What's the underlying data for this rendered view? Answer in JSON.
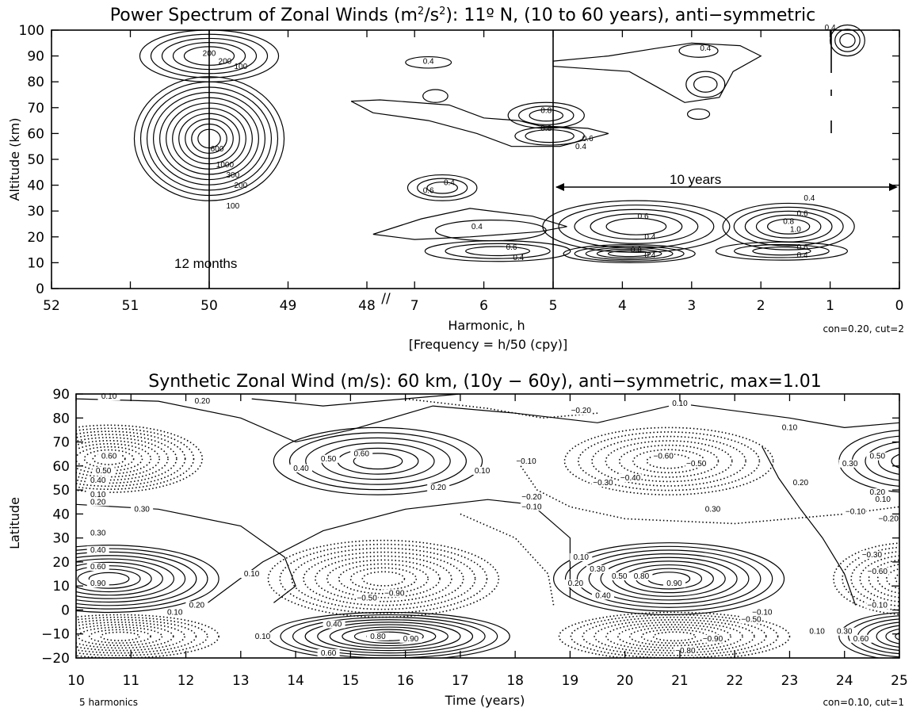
{
  "chart_data": [
    {
      "type": "contour",
      "title_main": "Power Spectrum of Zonal Winds (m",
      "title_sup1": "2",
      "title_mid": "/s",
      "title_sup2": "2",
      "title_end": "): 11º N, (10 to 60 years), anti−symmetric",
      "xlabel": "Harmonic, h",
      "xlabel2": "[Frequency = h/50 (cpy)]",
      "ylabel": "Altitude (km)",
      "ylim": [
        0,
        100
      ],
      "xticks_left": [
        "52",
        "51",
        "50",
        "49",
        "48"
      ],
      "xticks_right": [
        "7",
        "6",
        "5",
        "4",
        "3",
        "2",
        "1",
        "0"
      ],
      "yticks": [
        "0",
        "10",
        "20",
        "30",
        "40",
        "50",
        "60",
        "70",
        "80",
        "90",
        "100"
      ],
      "axis_break": "//",
      "annotations": [
        "12 months",
        "10 years"
      ],
      "note": "con=0.20, cut=2",
      "vertical_lines_at_harmonic": [
        50,
        5,
        1
      ],
      "contour_labels": [
        {
          "h": 50,
          "alt": 90,
          "text": "200"
        },
        {
          "h": 49.8,
          "alt": 87,
          "text": "200"
        },
        {
          "h": 49.6,
          "alt": 85,
          "text": "100"
        },
        {
          "h": 49.9,
          "alt": 53,
          "text": "600"
        },
        {
          "h": 49.8,
          "alt": 47,
          "text": "1000"
        },
        {
          "h": 49.7,
          "alt": 43,
          "text": "300"
        },
        {
          "h": 49.6,
          "alt": 39,
          "text": "200"
        },
        {
          "h": 49.7,
          "alt": 31,
          "text": "100"
        },
        {
          "h": 6.8,
          "alt": 87,
          "text": "0.4"
        },
        {
          "h": 5.1,
          "alt": 68,
          "text": "0.8"
        },
        {
          "h": 5.1,
          "alt": 61,
          "text": "0.8"
        },
        {
          "h": 4.5,
          "alt": 57,
          "text": "0.6"
        },
        {
          "h": 4.6,
          "alt": 54,
          "text": "0.4"
        },
        {
          "h": 6.5,
          "alt": 40,
          "text": "0.4"
        },
        {
          "h": 6.8,
          "alt": 37,
          "text": "0.6"
        },
        {
          "h": 6.1,
          "alt": 23,
          "text": "0.4"
        },
        {
          "h": 5.6,
          "alt": 15,
          "text": "0.6"
        },
        {
          "h": 5.5,
          "alt": 11,
          "text": "0.4"
        },
        {
          "h": 2.8,
          "alt": 92,
          "text": "0.4"
        },
        {
          "h": 1.0,
          "alt": 100,
          "text": "0.4"
        },
        {
          "h": 3.7,
          "alt": 27,
          "text": "0.6"
        },
        {
          "h": 3.6,
          "alt": 19,
          "text": "0.4"
        },
        {
          "h": 3.8,
          "alt": 14,
          "text": "0.8"
        },
        {
          "h": 3.6,
          "alt": 12,
          "text": "0.4"
        },
        {
          "h": 1.3,
          "alt": 34,
          "text": "0.4"
        },
        {
          "h": 1.4,
          "alt": 28,
          "text": "0.6"
        },
        {
          "h": 1.6,
          "alt": 25,
          "text": "0.8"
        },
        {
          "h": 1.5,
          "alt": 22,
          "text": "1.0"
        },
        {
          "h": 1.4,
          "alt": 15,
          "text": "0.6"
        },
        {
          "h": 1.4,
          "alt": 12,
          "text": "0.4"
        }
      ]
    },
    {
      "type": "contour",
      "title": "Synthetic Zonal Wind (m/s): 60 km, (10y − 60y), anti−symmetric, max=1.01",
      "xlabel": "Time (years)",
      "ylabel": "Latitude",
      "xlim": [
        10,
        25
      ],
      "ylim": [
        -20,
        90
      ],
      "xticks": [
        "10",
        "11",
        "12",
        "13",
        "14",
        "15",
        "16",
        "17",
        "18",
        "19",
        "20",
        "21",
        "22",
        "23",
        "24",
        "25"
      ],
      "yticks": [
        "−20",
        "−10",
        "0",
        "10",
        "20",
        "30",
        "40",
        "50",
        "60",
        "70",
        "80",
        "90"
      ],
      "note_left": "5 harmonics",
      "note_right": "con=0.10, cut=1",
      "line_style": "solid = positive, dotted = negative",
      "contour_labels": [
        {
          "t": 10.6,
          "lat": 88,
          "text": "0.10"
        },
        {
          "t": 12.3,
          "lat": 86,
          "text": "0.20"
        },
        {
          "t": 10.6,
          "lat": 63,
          "text": "0.60"
        },
        {
          "t": 10.5,
          "lat": 57,
          "text": "0.50"
        },
        {
          "t": 10.4,
          "lat": 53,
          "text": "0.40"
        },
        {
          "t": 10.4,
          "lat": 47,
          "text": "0.10"
        },
        {
          "t": 10.4,
          "lat": 44,
          "text": "0.20"
        },
        {
          "t": 11.2,
          "lat": 41,
          "text": "0.30"
        },
        {
          "t": 10.4,
          "lat": 31,
          "text": "0.30"
        },
        {
          "t": 10.4,
          "lat": 24,
          "text": "0.40"
        },
        {
          "t": 10.4,
          "lat": 17,
          "text": "0.60"
        },
        {
          "t": 10.4,
          "lat": 10,
          "text": "0.90"
        },
        {
          "t": 12.2,
          "lat": 1,
          "text": "0.20"
        },
        {
          "t": 11.8,
          "lat": -2,
          "text": "0.10"
        },
        {
          "t": 13.2,
          "lat": 14,
          "text": "0.10"
        },
        {
          "t": 15.2,
          "lat": 64,
          "text": "0.60"
        },
        {
          "t": 14.6,
          "lat": 62,
          "text": "0.50"
        },
        {
          "t": 14.1,
          "lat": 58,
          "text": "0.40"
        },
        {
          "t": 17.4,
          "lat": 57,
          "text": "0.10"
        },
        {
          "t": 16.6,
          "lat": 50,
          "text": "0.20"
        },
        {
          "t": 18.2,
          "lat": 61,
          "text": "−0.10"
        },
        {
          "t": 18.3,
          "lat": 46,
          "text": "−0.20"
        },
        {
          "t": 18.3,
          "lat": 42,
          "text": "−0.10"
        },
        {
          "t": 15.3,
          "lat": 4,
          "text": "−0.50"
        },
        {
          "t": 15.8,
          "lat": 6,
          "text": "−0.90"
        },
        {
          "t": 14.7,
          "lat": -7,
          "text": "0.40"
        },
        {
          "t": 15.5,
          "lat": -12,
          "text": "0.80"
        },
        {
          "t": 16.1,
          "lat": -13,
          "text": "0.90"
        },
        {
          "t": 14.6,
          "lat": -19,
          "text": "0.60"
        },
        {
          "t": 13.4,
          "lat": -12,
          "text": "0.10"
        },
        {
          "t": 19.2,
          "lat": 82,
          "text": "−0.20"
        },
        {
          "t": 21.0,
          "lat": 85,
          "text": "0.10"
        },
        {
          "t": 23.0,
          "lat": 75,
          "text": "0.10"
        },
        {
          "t": 20.7,
          "lat": 63,
          "text": "−0.60"
        },
        {
          "t": 21.3,
          "lat": 60,
          "text": "−0.50"
        },
        {
          "t": 20.1,
          "lat": 54,
          "text": "−0.40"
        },
        {
          "t": 19.6,
          "lat": 52,
          "text": "−0.30"
        },
        {
          "t": 23.2,
          "lat": 52,
          "text": "0.20"
        },
        {
          "t": 21.6,
          "lat": 41,
          "text": "0.30"
        },
        {
          "t": 19.2,
          "lat": 21,
          "text": "0.10"
        },
        {
          "t": 19.5,
          "lat": 16,
          "text": "0.30"
        },
        {
          "t": 19.9,
          "lat": 13,
          "text": "0.50"
        },
        {
          "t": 20.3,
          "lat": 13,
          "text": "0.80"
        },
        {
          "t": 20.9,
          "lat": 10,
          "text": "0.90"
        },
        {
          "t": 19.6,
          "lat": 5,
          "text": "0.40"
        },
        {
          "t": 19.1,
          "lat": 10,
          "text": "0.20"
        },
        {
          "t": 22.5,
          "lat": -2,
          "text": "−0.10"
        },
        {
          "t": 22.3,
          "lat": -5,
          "text": "−0.50"
        },
        {
          "t": 21.6,
          "lat": -13,
          "text": "−0.90"
        },
        {
          "t": 21.1,
          "lat": -18,
          "text": "−0.80"
        },
        {
          "t": 24.6,
          "lat": 63,
          "text": "0.50"
        },
        {
          "t": 24.1,
          "lat": 60,
          "text": "0.30"
        },
        {
          "t": 24.6,
          "lat": 48,
          "text": "0.20"
        },
        {
          "t": 24.7,
          "lat": 45,
          "text": "0.10"
        },
        {
          "t": 24.2,
          "lat": 40,
          "text": "−0.10"
        },
        {
          "t": 24.8,
          "lat": 37,
          "text": "−0.20"
        },
        {
          "t": 24.5,
          "lat": 22,
          "text": "−0.30"
        },
        {
          "t": 24.6,
          "lat": 15,
          "text": "−0.60"
        },
        {
          "t": 24.6,
          "lat": 1,
          "text": "−0.10"
        },
        {
          "t": 23.5,
          "lat": -10,
          "text": "0.10"
        },
        {
          "t": 24.0,
          "lat": -10,
          "text": "0.30"
        },
        {
          "t": 24.3,
          "lat": -13,
          "text": "0.60"
        }
      ]
    }
  ]
}
